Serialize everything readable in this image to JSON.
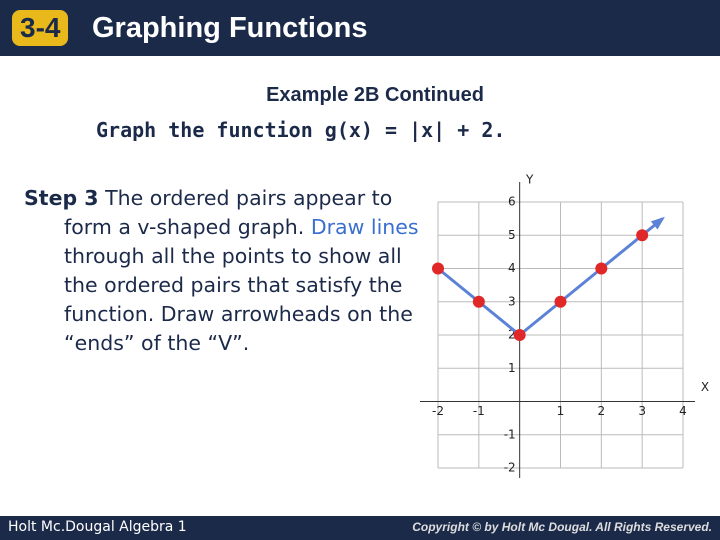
{
  "header": {
    "number": "3-4",
    "title": "Graphing Functions"
  },
  "subtitle": "Example 2B Continued",
  "prompt": "Graph the function g(x) = |x| + 2.",
  "body": {
    "step": "Step 3",
    "text1": " The ordered pairs appear to form a v-shaped graph. ",
    "highlight": "Draw lines",
    "text2": " through all the points to show all the ordered pairs that satisfy the function. Draw arrowheads on the “ends” of the “V”."
  },
  "footer": {
    "left": "Holt Mc.Dougal Algebra 1",
    "right": "Copyright © by Holt Mc Dougal. All Rights Reserved."
  },
  "chart_data": {
    "type": "line",
    "x_label": "X",
    "y_label": "Y",
    "x": [
      -2,
      -1,
      0,
      1,
      2,
      3
    ],
    "series": [
      {
        "color": "#5b82d6",
        "marker_color": "#e02828",
        "values": [
          4,
          3,
          2,
          3,
          4,
          5
        ]
      }
    ],
    "xlim": [
      -2,
      4
    ],
    "ylim": [
      -2,
      6
    ],
    "xticks": [
      -2,
      -1,
      1,
      2,
      3,
      4
    ],
    "yticks": [
      -2,
      -1,
      1,
      2,
      3,
      4,
      5,
      6
    ],
    "grid": true
  }
}
